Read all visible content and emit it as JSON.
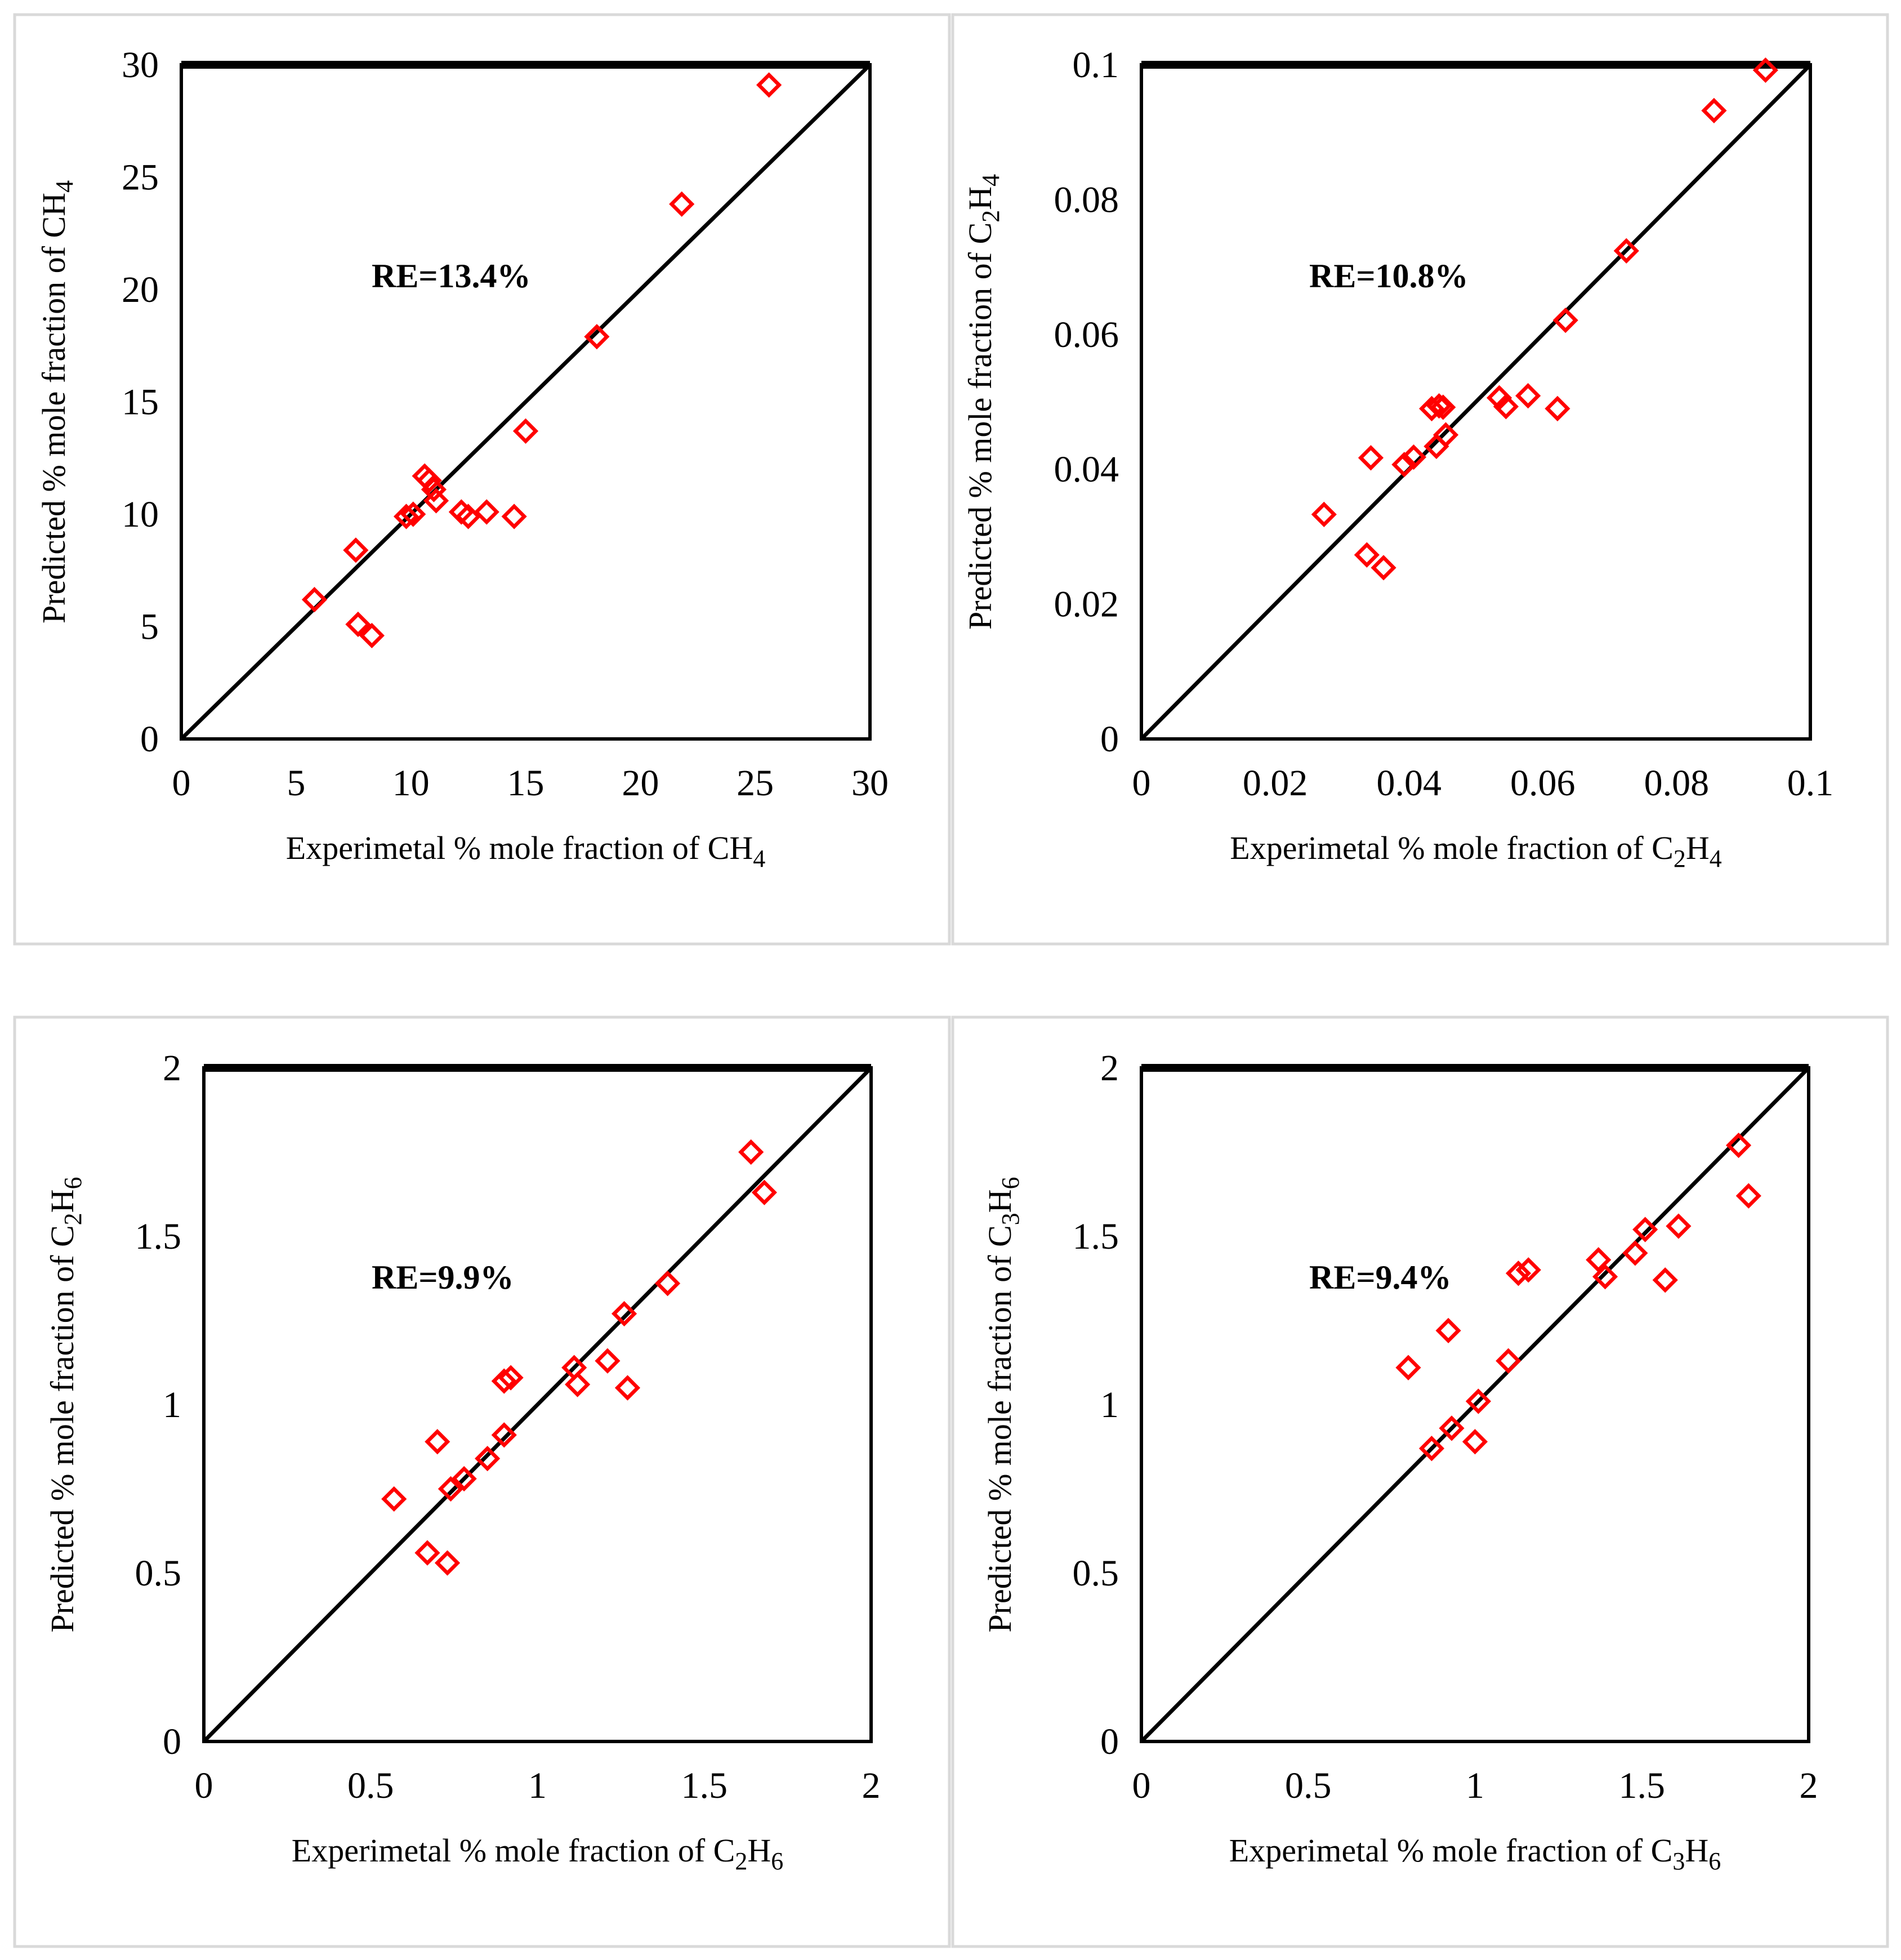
{
  "colors": {
    "points": "#ff0000",
    "lines": "#000000",
    "frame": "#d9d9d9"
  },
  "chart_data": [
    {
      "type": "scatter",
      "species": "CH4",
      "xlabel": "Experimetal % mole fraction of CH4",
      "ylabel": "Predicted % mole fraction of CH4",
      "xlabel_parts": {
        "prefix": "Experimetal % mole fraction of ",
        "formula": [
          [
            "CH",
            ""
          ],
          [
            "4",
            "sub"
          ]
        ]
      },
      "ylabel_parts": {
        "prefix": "Predicted % mole fraction of ",
        "formula": [
          [
            "CH",
            ""
          ],
          [
            "4",
            "sub"
          ]
        ]
      },
      "annotation": "RE=13.4%",
      "xlim": [
        0,
        30
      ],
      "ylim": [
        0,
        30
      ],
      "xticks": [
        0,
        5,
        10,
        15,
        20,
        25,
        30
      ],
      "yticks": [
        0,
        5,
        10,
        15,
        20,
        25,
        30
      ],
      "tick_labels": [
        "0",
        "5",
        "10",
        "15",
        "20",
        "25",
        "30"
      ],
      "diagonal": [
        [
          0,
          0
        ],
        [
          30,
          30
        ]
      ],
      "points": [
        [
          5.8,
          6.2
        ],
        [
          7.6,
          8.4
        ],
        [
          7.7,
          5.1
        ],
        [
          8.3,
          4.6
        ],
        [
          9.8,
          9.9
        ],
        [
          10.1,
          10.0
        ],
        [
          10.6,
          11.7
        ],
        [
          10.8,
          11.5
        ],
        [
          11.0,
          11.1
        ],
        [
          11.1,
          10.6
        ],
        [
          12.2,
          10.1
        ],
        [
          12.5,
          9.9
        ],
        [
          13.3,
          10.1
        ],
        [
          14.5,
          9.9
        ],
        [
          15.0,
          13.7
        ],
        [
          18.1,
          17.9
        ],
        [
          21.8,
          23.8
        ],
        [
          25.6,
          29.1
        ]
      ]
    },
    {
      "type": "scatter",
      "species": "C2H4",
      "xlabel": "Experimetal % mole fraction of C2H4",
      "ylabel": "Predicted % mole fraction of C2H4",
      "xlabel_parts": {
        "prefix": "Experimetal % mole fraction of ",
        "formula": [
          [
            "C",
            ""
          ],
          [
            "2",
            "sub"
          ],
          [
            "H",
            ""
          ],
          [
            "4",
            "sub"
          ]
        ]
      },
      "ylabel_parts": {
        "prefix": "Predicted % mole fraction of ",
        "formula": [
          [
            "C",
            ""
          ],
          [
            "2",
            "sub"
          ],
          [
            "H",
            ""
          ],
          [
            "4",
            "sub"
          ]
        ]
      },
      "annotation": "RE=10.8%",
      "xlim": [
        0,
        0.1
      ],
      "ylim": [
        0,
        0.1
      ],
      "xticks": [
        0,
        0.02,
        0.04,
        0.06,
        0.08,
        0.1
      ],
      "yticks": [
        0,
        0.02,
        0.04,
        0.06,
        0.08,
        0.1
      ],
      "tick_labels": [
        "0",
        "0.02",
        "0.04",
        "0.06",
        "0.08",
        "0.1"
      ],
      "diagonal": [
        [
          0,
          0
        ],
        [
          0.1,
          0.1
        ]
      ],
      "points": [
        [
          0.0273,
          0.0333
        ],
        [
          0.0337,
          0.0273
        ],
        [
          0.0343,
          0.0417
        ],
        [
          0.0362,
          0.0254
        ],
        [
          0.0393,
          0.0407
        ],
        [
          0.0407,
          0.0418
        ],
        [
          0.0434,
          0.049
        ],
        [
          0.0441,
          0.0434
        ],
        [
          0.0445,
          0.0494
        ],
        [
          0.0451,
          0.0492
        ],
        [
          0.0455,
          0.0451
        ],
        [
          0.0535,
          0.0506
        ],
        [
          0.0545,
          0.0493
        ],
        [
          0.0578,
          0.0509
        ],
        [
          0.0622,
          0.049
        ],
        [
          0.0634,
          0.0621
        ],
        [
          0.0725,
          0.0724
        ],
        [
          0.0856,
          0.0932
        ],
        [
          0.0933,
          0.0992
        ]
      ]
    },
    {
      "type": "scatter",
      "species": "C2H6",
      "xlabel": "Experimetal % mole fraction of C2H6",
      "ylabel": "Predicted % mole fraction of C2H6",
      "xlabel_parts": {
        "prefix": "Experimetal % mole fraction of ",
        "formula": [
          [
            "C",
            ""
          ],
          [
            "2",
            "sub"
          ],
          [
            "H",
            ""
          ],
          [
            "6",
            "sub"
          ]
        ]
      },
      "ylabel_parts": {
        "prefix": "Predicted % mole fraction of ",
        "formula": [
          [
            "C",
            ""
          ],
          [
            "2",
            "sub"
          ],
          [
            "H",
            ""
          ],
          [
            "6",
            "sub"
          ]
        ]
      },
      "annotation": "RE=9.9%",
      "xlim": [
        0,
        2
      ],
      "ylim": [
        0,
        2
      ],
      "xticks": [
        0,
        0.5,
        1,
        1.5,
        2
      ],
      "yticks": [
        0,
        0.5,
        1,
        1.5,
        2
      ],
      "tick_labels": [
        "0",
        "0.5",
        "1",
        "1.5",
        "2"
      ],
      "diagonal": [
        [
          0,
          0
        ],
        [
          2,
          2
        ]
      ],
      "points": [
        [
          0.57,
          0.72
        ],
        [
          0.67,
          0.56
        ],
        [
          0.7,
          0.89
        ],
        [
          0.73,
          0.53
        ],
        [
          0.74,
          0.75
        ],
        [
          0.78,
          0.78
        ],
        [
          0.85,
          0.84
        ],
        [
          0.9,
          1.07
        ],
        [
          0.9,
          0.91
        ],
        [
          0.92,
          1.08
        ],
        [
          1.11,
          1.11
        ],
        [
          1.12,
          1.06
        ],
        [
          1.21,
          1.13
        ],
        [
          1.26,
          1.27
        ],
        [
          1.27,
          1.05
        ],
        [
          1.39,
          1.36
        ],
        [
          1.64,
          1.75
        ],
        [
          1.68,
          1.63
        ]
      ]
    },
    {
      "type": "scatter",
      "species": "C3H6",
      "xlabel": "Experimetal % mole fraction of C3H6",
      "ylabel": "Predicted % mole fraction of C3H6",
      "xlabel_parts": {
        "prefix": "Experimetal % mole fraction of ",
        "formula": [
          [
            "C",
            ""
          ],
          [
            "3",
            "sub"
          ],
          [
            "H",
            ""
          ],
          [
            "6",
            "sub"
          ]
        ]
      },
      "ylabel_parts": {
        "prefix": "Predicted % mole fraction of ",
        "formula": [
          [
            "C",
            ""
          ],
          [
            "3",
            "sub"
          ],
          [
            "H",
            ""
          ],
          [
            "6",
            "sub"
          ]
        ]
      },
      "annotation": "RE=9.4%",
      "xlim": [
        0,
        2
      ],
      "ylim": [
        0,
        2
      ],
      "xticks": [
        0,
        0.5,
        1,
        1.5,
        2
      ],
      "yticks": [
        0,
        0.5,
        1,
        1.5,
        2
      ],
      "tick_labels": [
        "0",
        "0.5",
        "1",
        "1.5",
        "2"
      ],
      "diagonal": [
        [
          0,
          0
        ],
        [
          2,
          2
        ]
      ],
      "points": [
        [
          0.8,
          1.11
        ],
        [
          0.87,
          0.87
        ],
        [
          0.92,
          1.22
        ],
        [
          0.93,
          0.93
        ],
        [
          1.0,
          0.89
        ],
        [
          1.01,
          1.01
        ],
        [
          1.1,
          1.13
        ],
        [
          1.13,
          1.39
        ],
        [
          1.16,
          1.4
        ],
        [
          1.37,
          1.43
        ],
        [
          1.39,
          1.38
        ],
        [
          1.48,
          1.45
        ],
        [
          1.51,
          1.52
        ],
        [
          1.57,
          1.37
        ],
        [
          1.61,
          1.53
        ],
        [
          1.79,
          1.77
        ],
        [
          1.82,
          1.62
        ]
      ]
    }
  ]
}
